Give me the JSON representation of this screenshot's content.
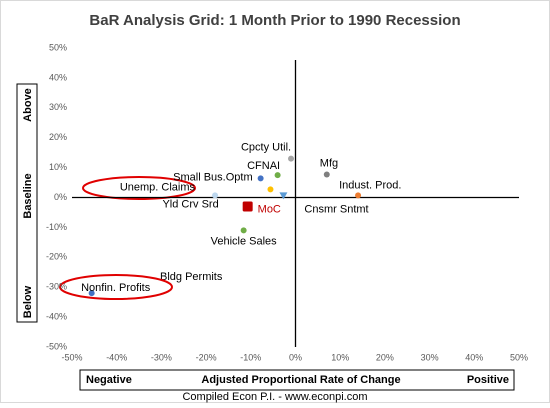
{
  "chart_data": {
    "type": "scatter",
    "title": "BaR Analysis Grid: 1 Month Prior to 1990 Recession",
    "xlabel": "Adjusted Proportional Rate of Change",
    "x_low_label": "Negative",
    "x_high_label": "Positive",
    "y_high_label": "Above",
    "y_mid_label": "Baseline",
    "y_low_label": "Below",
    "source": "Compiled Econ P.I. - www.econpi.com",
    "annotation": "Bldg Permits",
    "xlim": [
      -50,
      50
    ],
    "ylim": [
      -50,
      50
    ],
    "xticks": [
      {
        "value": -50,
        "label": "-50%"
      },
      {
        "value": -40,
        "label": "-40%"
      },
      {
        "value": -30,
        "label": "-30%"
      },
      {
        "value": -20,
        "label": "-20%"
      },
      {
        "value": -10,
        "label": "-10%"
      },
      {
        "value": 0,
        "label": "0%"
      },
      {
        "value": 10,
        "label": "10%"
      },
      {
        "value": 20,
        "label": "20%"
      },
      {
        "value": 30,
        "label": "30%"
      },
      {
        "value": 40,
        "label": "40%"
      },
      {
        "value": 50,
        "label": "50%"
      }
    ],
    "yticks": [
      {
        "value": -50,
        "label": "-50%"
      },
      {
        "value": -40,
        "label": "-40%"
      },
      {
        "value": -30,
        "label": "-30%"
      },
      {
        "value": -20,
        "label": "-20%"
      },
      {
        "value": -10,
        "label": "-10%"
      },
      {
        "value": 0,
        "label": "0%"
      },
      {
        "value": 10,
        "label": "10%"
      },
      {
        "value": 20,
        "label": "20%"
      },
      {
        "value": 30,
        "label": "30%"
      },
      {
        "value": 40,
        "label": "40%"
      },
      {
        "value": 50,
        "label": "50%"
      }
    ],
    "points": [
      {
        "label": "Cpcty Util.",
        "x": -1,
        "y": 13,
        "color": "#a5a5a5"
      },
      {
        "label": "CFNAI",
        "x": -4,
        "y": 7.5,
        "color": "#70ad47"
      },
      {
        "label": "Small Bus.Optm",
        "x": -7.8,
        "y": 6.4,
        "color": "#4472c4"
      },
      {
        "label": "Mfg",
        "x": 7,
        "y": 7.7,
        "color": "#7f7f7f"
      },
      {
        "label": "Indust. Prod.",
        "x": 14,
        "y": 0.7,
        "color": "#ed7d31"
      },
      {
        "label": "Cnsmr Sntmt",
        "x": -2.7,
        "y": 0.7,
        "color": "#5b9bd5"
      },
      {
        "label": "Unemp. Claims",
        "x": -18,
        "y": 0.7,
        "color": "#bdd7ee"
      },
      {
        "label": "Yld Crv Srd",
        "x": -5.6,
        "y": 2.7,
        "color": "#ffc000"
      },
      {
        "label": "MoC",
        "x": -10.7,
        "y": -3,
        "color": "#c00000"
      },
      {
        "label": "Vehicle Sales",
        "x": -11.6,
        "y": -11,
        "color": "#70ad47"
      },
      {
        "label": "Nonfin. Profits",
        "x": -45.6,
        "y": -32,
        "color": "#4472c4"
      }
    ]
  }
}
